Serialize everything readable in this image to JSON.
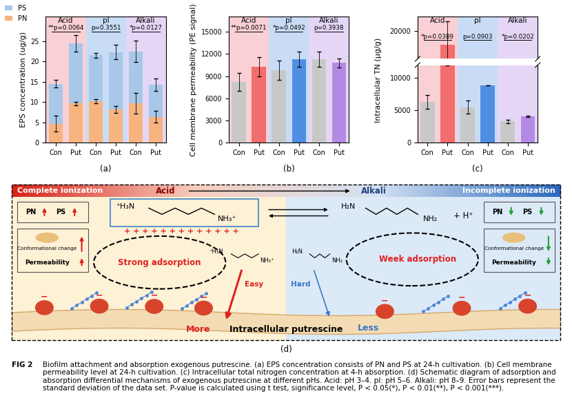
{
  "chart_data": [
    {
      "type": "bar",
      "title": "(a)",
      "stacked": true,
      "legend": "upper left",
      "ylabel": "EPS concentration (ug/g)",
      "categories": [
        "Con",
        "Put",
        "Con",
        "Put",
        "Con",
        "Put"
      ],
      "groups": [
        {
          "name": "Acid",
          "color": "#f9d0d4",
          "p_value": "**p=0.0064"
        },
        {
          "name": "pI",
          "color": "#c9dcf6",
          "p_value": "p=0.3551"
        },
        {
          "name": "Alkali",
          "color": "#e5d6f6",
          "p_value": "*p=0.0127"
        }
      ],
      "series": [
        {
          "name": "PN",
          "color": "#f7b47e",
          "values": [
            4.7,
            9.7,
            10.2,
            8.2,
            9.7,
            6.4
          ],
          "error": [
            2.0,
            0.4,
            0.5,
            0.8,
            2.5,
            1.5
          ]
        },
        {
          "name": "PS",
          "color": "#a8c8ea",
          "values": [
            9.8,
            14.8,
            11.3,
            14.1,
            12.8,
            7.9
          ],
          "error": [
            0.9,
            2.0,
            0.6,
            1.8,
            2.6,
            1.6
          ]
        }
      ],
      "ylim": [
        0,
        31
      ],
      "yticks": [
        0,
        5,
        10,
        15,
        20,
        25
      ]
    },
    {
      "type": "bar",
      "title": "(b)",
      "ylabel": "Cell membrane permeability (PE signal)",
      "categories": [
        "Con",
        "Put",
        "Con",
        "Put",
        "Con",
        "Put"
      ],
      "groups": [
        {
          "name": "Acid",
          "color": "#f9d0d4",
          "p_value": "**p=0.0071"
        },
        {
          "name": "pI",
          "color": "#c9dcf6",
          "p_value": "*p=0.0492"
        },
        {
          "name": "Alkali",
          "color": "#e5d6f6",
          "p_value": "p=0.3938"
        }
      ],
      "values": [
        8200,
        10300,
        9800,
        11300,
        11300,
        10800
      ],
      "error": [
        1200,
        1300,
        1300,
        1000,
        1000,
        600
      ],
      "colors": [
        "#c8c8c8",
        "#f26d6d",
        "#c8c8c8",
        "#4f8fe3",
        "#c8c8c8",
        "#b38ae3"
      ],
      "ylim": [
        0,
        17000
      ],
      "yticks": [
        0,
        3000,
        6000,
        9000,
        12000,
        15000
      ]
    },
    {
      "type": "bar",
      "title": "(c)",
      "ylabel": "Intracellular TN (μg/g)",
      "categories": [
        "Con",
        "Put",
        "Con",
        "Put",
        "Con",
        "Put"
      ],
      "groups": [
        {
          "name": "Acid",
          "color": "#f9d0d4",
          "p_value": "*p=0.0389"
        },
        {
          "name": "pI",
          "color": "#c9dcf6",
          "p_value": "p=0.0903"
        },
        {
          "name": "Alkali",
          "color": "#e5d6f6",
          "p_value": "*p=0.0202"
        }
      ],
      "values": [
        6300,
        17000,
        5500,
        8900,
        3300,
        4100
      ],
      "error": [
        1100,
        5000,
        1000,
        0,
        300,
        100
      ],
      "colors": [
        "#c8c8c8",
        "#f26d6d",
        "#c8c8c8",
        "#4f8fe3",
        "#c8c8c8",
        "#b38ae3"
      ],
      "ylim": [
        0,
        23000
      ],
      "axis_break": [
        12000,
        14000
      ],
      "yticks": [
        0,
        5000,
        10000,
        20000
      ]
    }
  ],
  "diagram": {
    "label": "(d)",
    "top_band": {
      "left": "Complete ionization",
      "acid": "Acid",
      "alkali": "Alkali",
      "right": "Incomplete ionization"
    },
    "acid_side": {
      "pn": "PN",
      "ps": "PS",
      "conformation": "Conformational change",
      "permeability": "Permeability",
      "molecule_left": "⁺H₃N",
      "molecule_right": "NH₃⁺",
      "charges": "+ + + + + + + + + + + + +",
      "adsorption": "Strong adsorption",
      "uptake": "Easy",
      "amount": "More"
    },
    "alkali_side": {
      "pn": "PN",
      "ps": "PS",
      "conformation": "Conformational change",
      "permeability": "Permeability",
      "molecule_left": "H₂N",
      "molecule_right": "NH₂",
      "proton": "+ H⁺",
      "adsorption": "Week adsorption",
      "uptake": "Hard",
      "amount": "Less"
    },
    "center": "Intracellular putrescine",
    "surface_charge": "−"
  },
  "caption": {
    "label": "FIG 2",
    "text": "Biofilm attachment and absorption exogenous putrescine. (a) EPS concentration consists of PN and PS at 24-h cultivation. (b) Cell membrane permeability level at 24-h cultivation. (c) Intracellular total nitrogen concentration at 4-h absorption. (d) Schematic diagram of adsorption and absorption differential mechanisms of exogenous putrescine at different pHs. Acid: pH 3–4. pI: pH 5–6. Alkali: pH 8–9. Error bars represent the standard deviation of the data set. P-value is calculated using t test, significance level, P < 0.05(*), P < 0.01(**), P < 0.001(***)."
  }
}
